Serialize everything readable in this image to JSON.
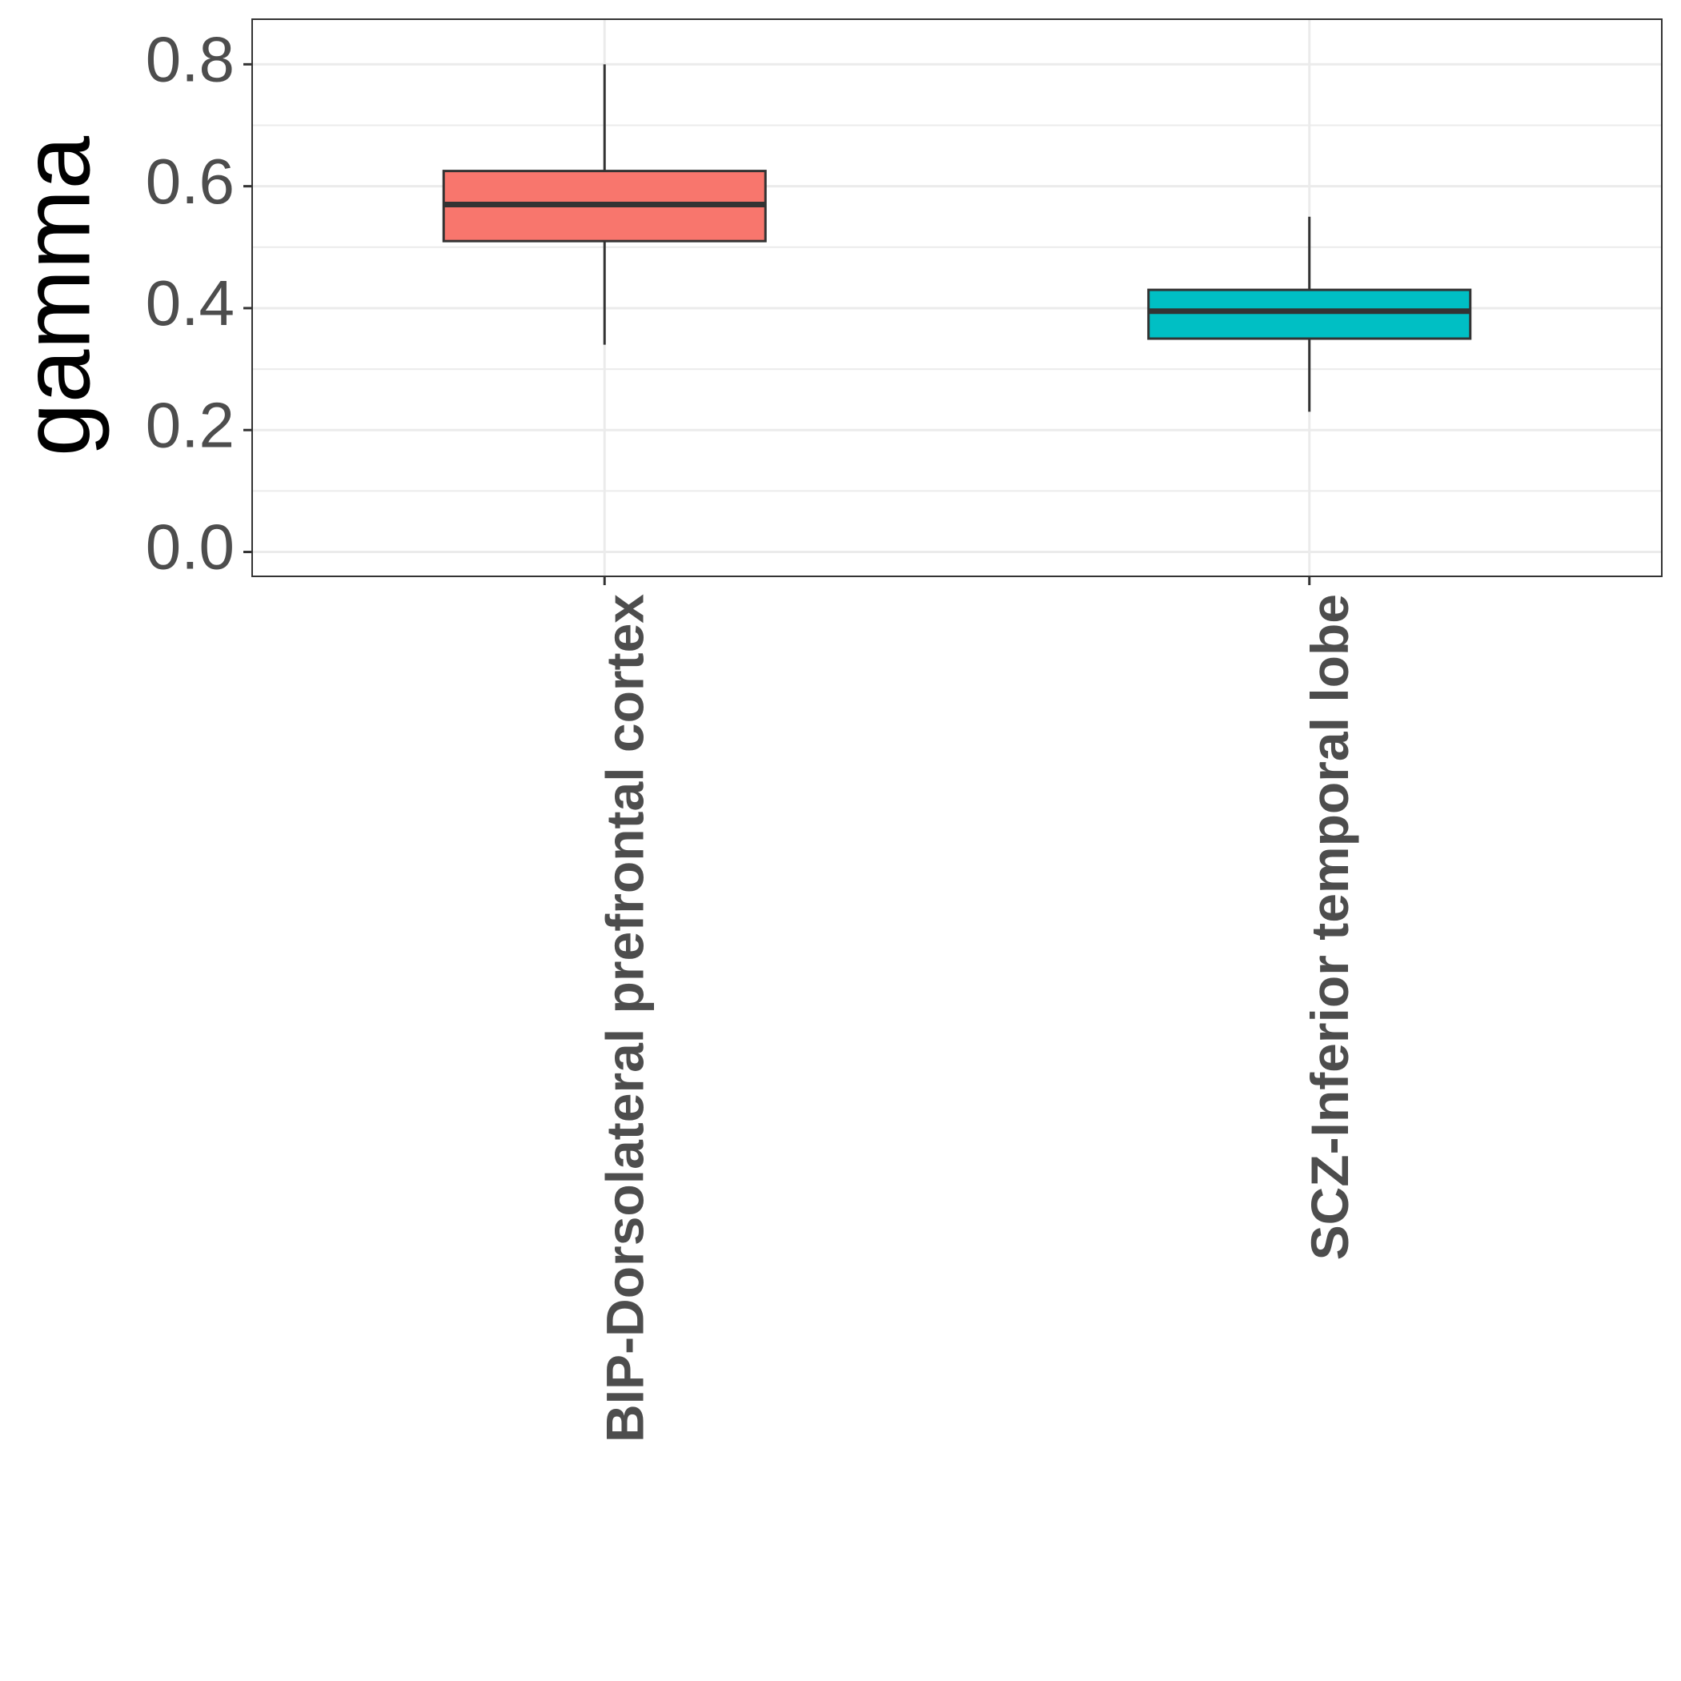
{
  "chart_data": {
    "type": "box",
    "y_label": "gamma",
    "categories": [
      "BIP-Dorsolateral prefrontal cortex",
      "SCZ-Inferior temporal lobe"
    ],
    "boxes": [
      {
        "low": 0.34,
        "q1": 0.51,
        "median": 0.57,
        "q3": 0.625,
        "high": 0.8,
        "color": "#F8766D"
      },
      {
        "low": 0.23,
        "q1": 0.35,
        "median": 0.395,
        "q3": 0.43,
        "high": 0.55,
        "color": "#00BFC4"
      }
    ],
    "ylim": [
      -0.04,
      0.874
    ],
    "yticks": [
      {
        "value": 0,
        "label": "0.0"
      },
      0.2,
      0.4,
      0.6,
      0.8
    ],
    "grid": true
  }
}
